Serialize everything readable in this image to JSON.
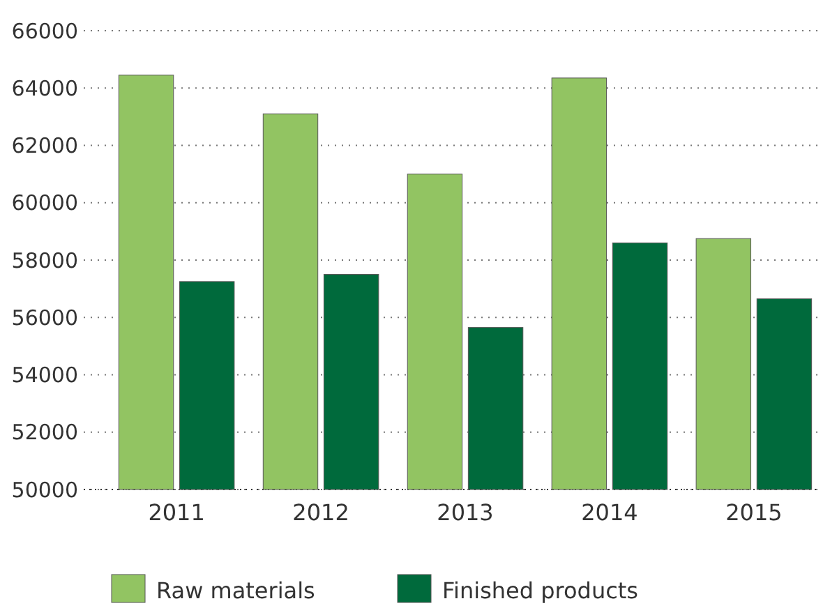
{
  "chart_data": {
    "type": "bar",
    "categories": [
      "2011",
      "2012",
      "2013",
      "2014",
      "2015"
    ],
    "series": [
      {
        "name": "Raw materials",
        "color": "#92c462",
        "values": [
          64450,
          63100,
          61000,
          64350,
          58750
        ]
      },
      {
        "name": "Finished products",
        "color": "#006a3c",
        "values": [
          57250,
          57500,
          55650,
          58600,
          56650
        ]
      }
    ],
    "ylim": [
      50000,
      66000
    ],
    "yticks": [
      50000,
      52000,
      54000,
      56000,
      58000,
      60000,
      62000,
      64000,
      66000
    ],
    "grid": "y",
    "legend": "bottom"
  }
}
